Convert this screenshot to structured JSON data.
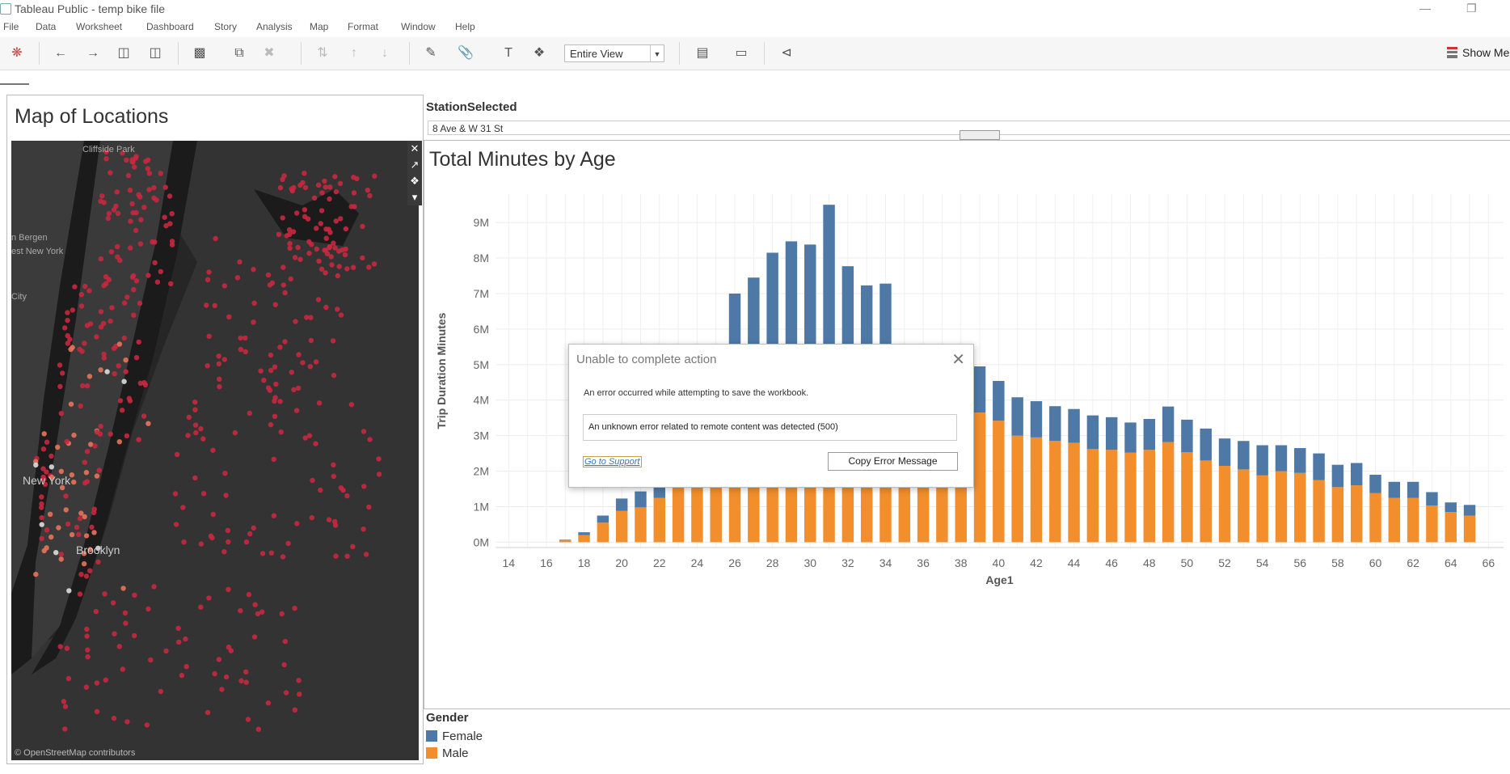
{
  "window": {
    "title": "Tableau Public - temp bike file",
    "min_icon": "minimize-icon",
    "restore_icon": "restore-icon"
  },
  "menu": [
    "File",
    "Data",
    "Worksheet",
    "Dashboard",
    "Story",
    "Analysis",
    "Map",
    "Format",
    "Window",
    "Help"
  ],
  "toolbar": {
    "icons": [
      "tableau-logo-icon",
      "back-icon",
      "forward-icon",
      "save-icon",
      "new-data-source-icon",
      "new-worksheet-icon",
      "duplicate-icon",
      "clear-icon",
      "swap-icon",
      "sort-ascending-icon",
      "sort-descending-icon",
      "highlight-icon",
      "group-icon",
      "labels-icon",
      "pin-icon",
      "show-cards-icon",
      "presentation-icon",
      "share-icon"
    ],
    "fit_value": "Entire View",
    "show_me_label": "Show Me"
  },
  "map_panel": {
    "title": "Map of Locations",
    "attribution": "© OpenStreetMap contributors",
    "place_labels": [
      "Cliffside Park",
      "n Bergen",
      "est New York",
      "City",
      "New York",
      "Brooklyn"
    ]
  },
  "filter": {
    "label": "StationSelected",
    "value": "8 Ave & W 31 St"
  },
  "chart_title": "Total Minutes by Age",
  "chart_data": {
    "type": "bar",
    "stacked": true,
    "title": "Total Minutes by Age",
    "xlabel": "Age1",
    "ylabel": "Trip Duration Minutes",
    "x_ticks": [
      14,
      16,
      18,
      20,
      22,
      24,
      26,
      28,
      30,
      32,
      34,
      36,
      38,
      40,
      42,
      44,
      46,
      48,
      50,
      52,
      54,
      56,
      58,
      60,
      62,
      64,
      66
    ],
    "y_ticks": [
      "0M",
      "1M",
      "2M",
      "3M",
      "4M",
      "5M",
      "6M",
      "7M",
      "8M",
      "9M"
    ],
    "xlim": [
      13.3,
      66.8
    ],
    "ylim": [
      -0.15,
      9.8
    ],
    "grid": true,
    "colors": {
      "Male": "#f28e2b",
      "Female": "#4e79a7"
    },
    "x": [
      17,
      18,
      19,
      20,
      21,
      22,
      23,
      24,
      25,
      26,
      27,
      28,
      29,
      30,
      31,
      32,
      33,
      34,
      35,
      36,
      37,
      38,
      39,
      40,
      41,
      42,
      43,
      44,
      45,
      46,
      47,
      48,
      49,
      50,
      51,
      52,
      53,
      54,
      55,
      56,
      57,
      58,
      59,
      60,
      61,
      62,
      63,
      64,
      65
    ],
    "series": [
      {
        "name": "Male",
        "values": [
          0.05,
          0.2,
          0.55,
          0.88,
          0.98,
          1.25,
          1.58,
          2.67,
          3.6,
          3.6,
          3.6,
          3.6,
          3.6,
          3.6,
          3.6,
          3.6,
          3.6,
          3.6,
          3.6,
          3.6,
          3.6,
          3.6,
          3.65,
          3.42,
          3.0,
          2.95,
          2.85,
          2.8,
          2.62,
          2.6,
          2.52,
          2.6,
          2.82,
          2.53,
          2.3,
          2.15,
          2.05,
          1.88,
          2.0,
          1.95,
          1.75,
          1.55,
          1.6,
          1.38,
          1.25,
          1.25,
          1.03,
          0.85,
          0.75
        ]
      },
      {
        "name": "Female",
        "values": [
          0.02,
          0.08,
          0.2,
          0.35,
          0.45,
          0.62,
          0.9,
          0.85,
          1.0,
          3.4,
          3.85,
          4.55,
          4.87,
          4.78,
          5.9,
          4.17,
          3.63,
          3.68,
          1.0,
          1.0,
          1.0,
          1.0,
          1.3,
          1.12,
          1.08,
          1.02,
          0.98,
          0.95,
          0.95,
          0.92,
          0.85,
          0.87,
          1.0,
          0.92,
          0.9,
          0.77,
          0.8,
          0.85,
          0.73,
          0.7,
          0.75,
          0.63,
          0.63,
          0.52,
          0.45,
          0.45,
          0.38,
          0.27,
          0.3
        ]
      }
    ]
  },
  "legend": {
    "title": "Gender",
    "items": [
      {
        "label": "Female",
        "color": "#4e79a7"
      },
      {
        "label": "Male",
        "color": "#f28e2b"
      }
    ]
  },
  "dialog": {
    "title": "Unable to complete action",
    "message": "An error occurred while attempting to save the workbook.",
    "error": "An unknown error related to remote content was detected (500)",
    "link": "Go to Support",
    "copy_button": "Copy Error Message",
    "close_icon": "close-icon"
  }
}
